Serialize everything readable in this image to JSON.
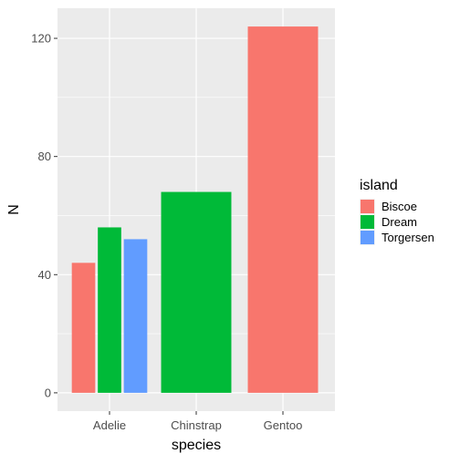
{
  "chart_data": {
    "type": "bar",
    "categories": [
      "Adelie",
      "Chinstrap",
      "Gentoo"
    ],
    "series": [
      {
        "name": "Biscoe",
        "values": [
          44,
          null,
          124
        ]
      },
      {
        "name": "Dream",
        "values": [
          56,
          68,
          null
        ]
      },
      {
        "name": "Torgersen",
        "values": [
          52,
          null,
          null
        ]
      }
    ],
    "xlabel": "species",
    "ylabel": "N",
    "yticks": [
      0,
      40,
      80,
      120
    ],
    "ylim": [
      -6.2,
      130.2
    ],
    "grid": true,
    "legend": {
      "title": "island",
      "placement": "right"
    },
    "colors": {
      "Biscoe": "#F8766D",
      "Dream": "#00BA38",
      "Torgersen": "#619CFF"
    }
  }
}
